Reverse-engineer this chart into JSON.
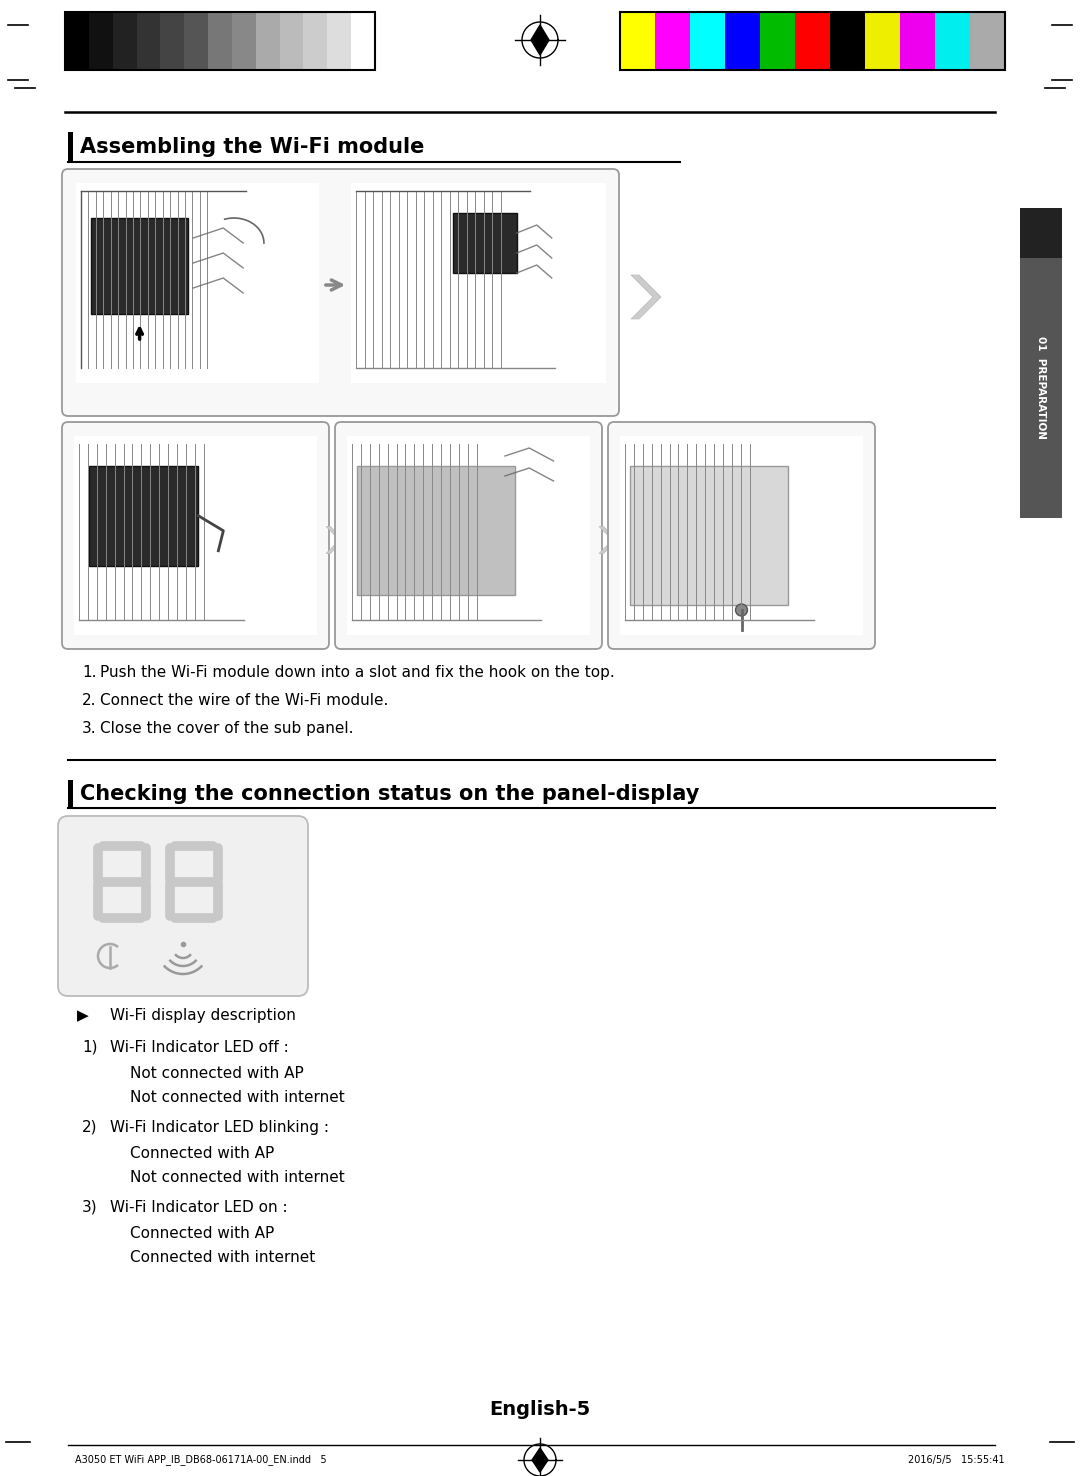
{
  "page_bg": "#ffffff",
  "title1": "Assembling the Wi-Fi module",
  "title2": "Checking the connection status on the panel-display",
  "footer_text": "English-5",
  "footer_left": "A3050 ET WiFi APP_IB_DB68-06171A-00_EN.indd   5",
  "footer_right": "2016/5/5   15:55:41",
  "steps_assembling": [
    "Push the Wi-Fi module down into a slot and fix the hook on the top.",
    "Connect the wire of the Wi-Fi module.",
    "Close the cover of the sub panel."
  ],
  "wifi_items": [
    {
      "num": "1)",
      "title": "Wi-Fi Indicator LED off :",
      "lines": [
        "Not connected with AP",
        "Not connected with internet"
      ]
    },
    {
      "num": "2)",
      "title": "Wi-Fi Indicator LED blinking :",
      "lines": [
        "Connected with AP",
        "Not connected with internet"
      ]
    },
    {
      "num": "3)",
      "title": "Wi-Fi Indicator LED on :",
      "lines": [
        "Connected with AP",
        "Connected with internet"
      ]
    }
  ],
  "grayscale_colors": [
    "#000000",
    "#111111",
    "#222222",
    "#333333",
    "#444444",
    "#555555",
    "#777777",
    "#888888",
    "#aaaaaa",
    "#bbbbbb",
    "#cccccc",
    "#dddddd",
    "#ffffff"
  ],
  "color_bars": [
    "#ffff00",
    "#ff00ff",
    "#00ffff",
    "#0000ff",
    "#00bb00",
    "#ff0000",
    "#000000",
    "#eeee00",
    "#ee00ee",
    "#00eeee",
    "#aaaaaa"
  ],
  "tab_color": "#555555",
  "tab_dark": "#222222",
  "img_border": "#aaaaaa",
  "img_bg": "#ffffff",
  "arrow_color": "#bbbbbb",
  "seg_color": "#c8c8c8",
  "panel_bg": "#f0f0f0"
}
